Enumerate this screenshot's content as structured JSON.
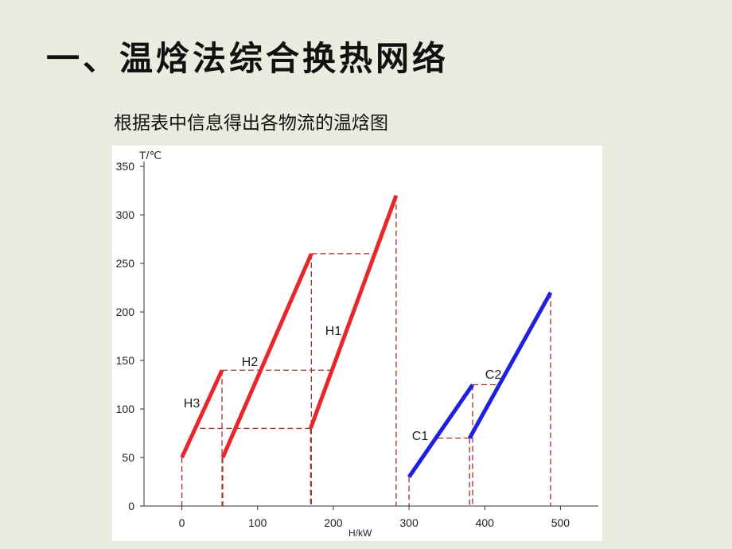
{
  "chart_data": {
    "type": "line",
    "title": "一、温焓法综合换热网络",
    "subtitle": "根据表中信息得出各物流的温焓图",
    "x_label": "H/kW",
    "y_label": "T/℃",
    "xlim": [
      -50,
      550
    ],
    "xticks": [
      0,
      100,
      200,
      300,
      400,
      500
    ],
    "ylim": [
      0,
      355
    ],
    "yticks": [
      0,
      50,
      100,
      150,
      200,
      250,
      300,
      350
    ],
    "series": [
      {
        "name": "H3",
        "color": "#e8262c",
        "x": [
          0,
          53
        ],
        "values": [
          50,
          140
        ]
      },
      {
        "name": "H2",
        "color": "#e8262c",
        "x": [
          54,
          171
        ],
        "values": [
          50,
          260
        ]
      },
      {
        "name": "H1",
        "color": "#e8262c",
        "x": [
          170,
          283
        ],
        "values": [
          80,
          320
        ]
      },
      {
        "name": "C1",
        "color": "#1f1fe0",
        "x": [
          300,
          384
        ],
        "values": [
          30,
          125
        ]
      },
      {
        "name": "C2",
        "color": "#1f1fe0",
        "x": [
          380,
          487
        ],
        "values": [
          70,
          220
        ]
      }
    ]
  }
}
